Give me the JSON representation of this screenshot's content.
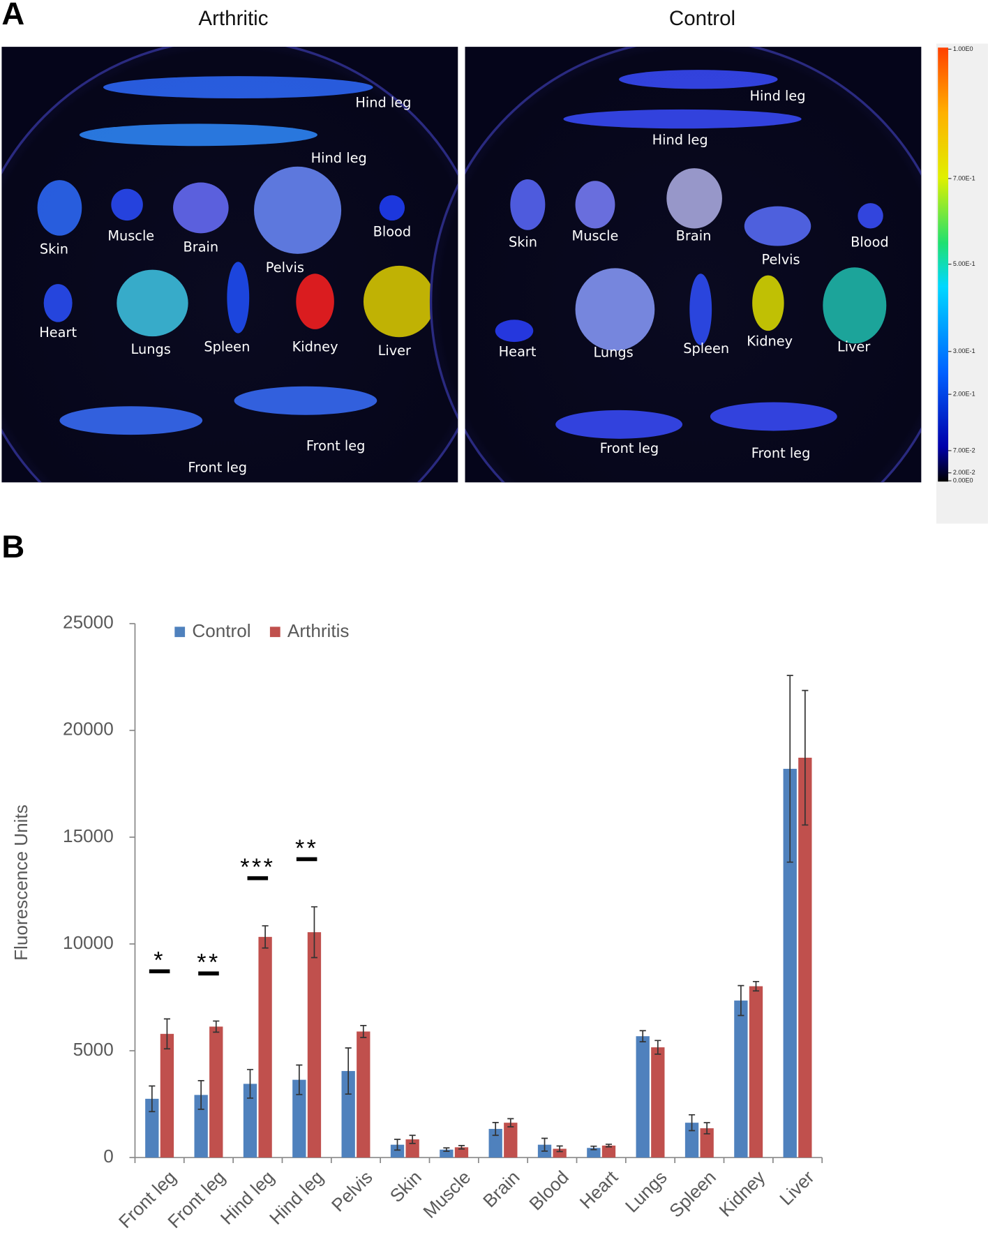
{
  "panel_a": {
    "label": "A",
    "images": [
      {
        "title": "Arthritic",
        "labels": [
          "Hind leg",
          "Hind leg",
          "Skin",
          "Muscle",
          "Brain",
          "Pelvis",
          "Blood",
          "Heart",
          "Lungs",
          "Spleen",
          "Kidney",
          "Liver",
          "Front leg",
          "Front leg"
        ]
      },
      {
        "title": "Control",
        "labels": [
          "Hind leg",
          "Hind leg",
          "Skin",
          "Muscle",
          "Brain",
          "Pelvis",
          "Blood",
          "Heart",
          "Lungs",
          "Spleen",
          "Kidney",
          "Liver",
          "Front leg",
          "Front leg"
        ]
      }
    ],
    "colorbar_labels": [
      "1.00E0",
      "7.00E-1",
      "5.00E-1",
      "3.00E-1",
      "2.00E-1",
      "7.00E-2",
      "2.00E-2",
      "0.00E0"
    ]
  },
  "chart_data": {
    "type": "bar",
    "panel_label": "B",
    "ylabel": "Fluorescence Units",
    "categories": [
      "Front leg",
      "Front leg",
      "Hind leg",
      "Hind leg",
      "Pelvis",
      "Skin",
      "Muscle",
      "Brain",
      "Blood",
      "Heart",
      "Lungs",
      "Spleen",
      "Kidney",
      "Liver"
    ],
    "series": [
      {
        "name": "Control",
        "color": "#4f81bd",
        "values": [
          2750,
          2930,
          3450,
          3640,
          4050,
          600,
          370,
          1340,
          600,
          450,
          5680,
          1630,
          7350,
          18200
        ],
        "errors": [
          600,
          670,
          670,
          690,
          1080,
          250,
          80,
          300,
          300,
          80,
          260,
          370,
          700,
          4370
        ]
      },
      {
        "name": "Arthritis",
        "color": "#c0504d",
        "values": [
          5790,
          6130,
          10330,
          10550,
          5900,
          850,
          480,
          1630,
          410,
          560,
          5160,
          1370,
          8020,
          18720
        ],
        "errors": [
          700,
          260,
          520,
          1190,
          280,
          190,
          80,
          190,
          130,
          60,
          320,
          260,
          220,
          3150
        ]
      }
    ],
    "significance": [
      "*",
      "**",
      "***",
      "**",
      null,
      null,
      null,
      null,
      null,
      null,
      null,
      null,
      null,
      null
    ],
    "ylim": [
      0,
      25000
    ],
    "yticks": [
      0,
      5000,
      10000,
      15000,
      20000,
      25000
    ]
  }
}
